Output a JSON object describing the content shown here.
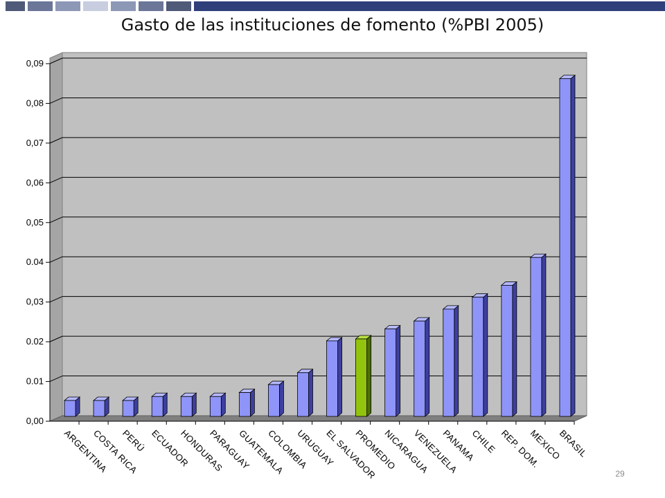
{
  "header": {
    "bar_colors": [
      "#4f5a78",
      "#6b7698",
      "#8d97b6",
      "#c8cde0",
      "#8d97b6",
      "#6b7698",
      "#4f5a78",
      "#2f3f7a"
    ]
  },
  "slide": {
    "page_number": "29"
  },
  "chart_data": {
    "type": "bar",
    "title": "Gasto de las instituciones de fomento (%PBI 2005)",
    "xlabel": "",
    "ylabel": "",
    "categories": [
      "ARGENTINA",
      "COSTA RICA",
      "PERÚ",
      "ECUADOR",
      "HONDURAS",
      "PARAGUAY",
      "GUATEMALA",
      "COLOMBIA",
      "URUGUAY",
      "EL SALVADOR",
      "PROMEDIO",
      "NICARAGUA",
      "VENEZUELA",
      "PANAMA",
      "CHILE",
      "REP. DOM.",
      "MEXICO",
      "BRASIL"
    ],
    "values": [
      0.004,
      0.004,
      0.004,
      0.005,
      0.005,
      0.005,
      0.006,
      0.008,
      0.011,
      0.019,
      0.0195,
      0.022,
      0.024,
      0.027,
      0.03,
      0.033,
      0.04,
      0.085
    ],
    "highlight_category": "PROMEDIO",
    "ylim": [
      0,
      0.09
    ],
    "yticks": [
      0,
      0.01,
      0.02,
      0.03,
      0.04,
      0.05,
      0.06,
      0.07,
      0.08,
      0.09
    ],
    "ytick_labels": [
      "0,00",
      "0.01",
      "0.02",
      "0,03",
      "0.04",
      "0,05",
      "0,06",
      "0,07",
      "0,08",
      "0,09"
    ],
    "grid": true,
    "legend": "none",
    "colors": {
      "bar": "#8f94f8",
      "bar_side": "#3d40a0",
      "bar_top": "#b6b9ff",
      "highlight": "#92c40e",
      "highlight_side": "#4d6e05",
      "highlight_top": "#b9e043",
      "plot_background": "#c0c0c0",
      "side_wall": "#a5a5a5",
      "floor": "#7f7f7f",
      "grid": "#000000"
    }
  }
}
